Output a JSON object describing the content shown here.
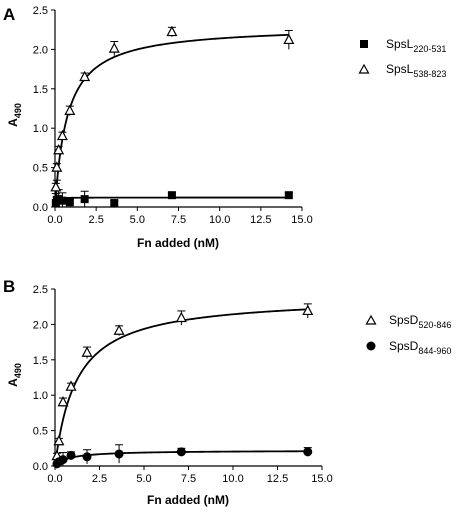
{
  "chart_data": [
    {
      "type": "scatter",
      "panel": "A",
      "xlabel": "Fn added (nM)",
      "ylabel": "A",
      "ylabel_sub": "490",
      "xlim": [
        0,
        15
      ],
      "ylim": [
        0,
        2.5
      ],
      "xticks": [
        "0.0",
        "2.5",
        "5.0",
        "7.5",
        "10.0",
        "12.5",
        "15.0"
      ],
      "yticks": [
        "0.0",
        "0.5",
        "1.0",
        "1.5",
        "2.0",
        "2.5"
      ],
      "legend_position": "right",
      "series": [
        {
          "name": "SpsL",
          "name_sub": "220-531",
          "marker": "square",
          "x": [
            0.05,
            0.11,
            0.22,
            0.45,
            0.9,
            1.8,
            3.6,
            7.1,
            14.2
          ],
          "y": [
            0.05,
            0.09,
            0.1,
            0.08,
            0.06,
            0.1,
            0.05,
            0.15,
            0.15
          ],
          "err": [
            0.12,
            0.25,
            0.12,
            0.1,
            0.04,
            0.1,
            0.03,
            0.03,
            0.03
          ],
          "fit": {
            "bmax": 0.12,
            "kd": 0.03
          }
        },
        {
          "name": "SpsL",
          "name_sub": "538-823",
          "marker": "open-triangle",
          "x": [
            0.05,
            0.11,
            0.22,
            0.45,
            0.9,
            1.8,
            3.6,
            7.1,
            14.2
          ],
          "y": [
            0.25,
            0.5,
            0.72,
            0.9,
            1.22,
            1.65,
            2.01,
            2.22,
            2.12
          ],
          "err": [
            0.05,
            0.05,
            0.05,
            0.05,
            0.06,
            0.05,
            0.09,
            0.06,
            0.12
          ],
          "fit": {
            "bmax": 2.3,
            "kd": 0.75
          }
        }
      ]
    },
    {
      "type": "scatter",
      "panel": "B",
      "xlabel": "Fn added (nM)",
      "ylabel": "A",
      "ylabel_sub": "490",
      "xlim": [
        0,
        15
      ],
      "ylim": [
        0,
        2.5
      ],
      "xticks": [
        "0.0",
        "2.5",
        "5.0",
        "7.5",
        "10.0",
        "12.5",
        "15.0"
      ],
      "yticks": [
        "0.0",
        "0.5",
        "1.0",
        "1.5",
        "2.0",
        "2.5"
      ],
      "legend_position": "right",
      "series": [
        {
          "name": "SpsD",
          "name_sub": "520-846",
          "marker": "open-triangle",
          "x": [
            0.11,
            0.22,
            0.45,
            0.9,
            1.8,
            3.6,
            7.1,
            14.2
          ],
          "y": [
            0.14,
            0.35,
            0.9,
            1.12,
            1.6,
            1.91,
            2.09,
            2.19
          ],
          "err": [
            0.04,
            0.04,
            0.06,
            0.05,
            0.08,
            0.07,
            0.1,
            0.1
          ],
          "fit": {
            "bmax": 2.4,
            "kd": 1.2
          }
        },
        {
          "name": "SpsD",
          "name_sub": "844-960",
          "marker": "filled-circle",
          "x": [
            0.11,
            0.22,
            0.45,
            0.9,
            1.8,
            3.6,
            7.1,
            14.2
          ],
          "y": [
            0.03,
            0.06,
            0.09,
            0.15,
            0.13,
            0.17,
            0.2,
            0.2
          ],
          "err": [
            0.02,
            0.03,
            0.1,
            0.05,
            0.1,
            0.13,
            0.05,
            0.06
          ],
          "fit": {
            "bmax": 0.22,
            "kd": 0.8
          }
        }
      ]
    }
  ]
}
